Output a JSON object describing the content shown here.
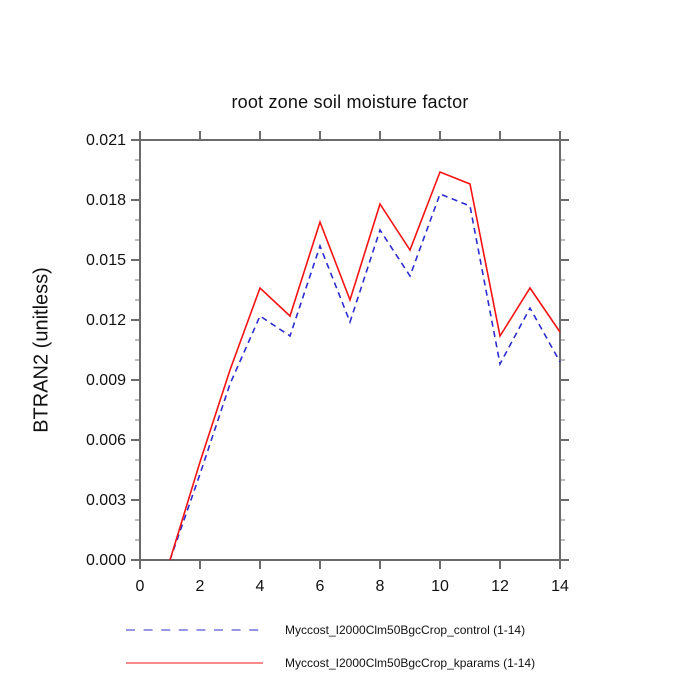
{
  "chart_data": {
    "type": "line",
    "title": "root zone soil moisture factor",
    "xlabel": "",
    "ylabel": "BTRAN2 (unitless)",
    "x": [
      1,
      2,
      3,
      4,
      5,
      6,
      7,
      8,
      9,
      10,
      11,
      12,
      13,
      14
    ],
    "series": [
      {
        "name": "Myccost_I2000Clm50BgcCrop_control (1-14)",
        "color": "#2c2cd0",
        "line_style": "dashed",
        "values": [
          0.0,
          0.0043,
          0.0088,
          0.0122,
          0.0112,
          0.0157,
          0.0119,
          0.0165,
          0.0142,
          0.0183,
          0.0177,
          0.0098,
          0.0126,
          0.0099
        ]
      },
      {
        "name": "Myccost_I2000Clm50BgcCrop_kparams (1-14)",
        "color": "#f51212",
        "line_style": "solid",
        "values": [
          0.0,
          0.0049,
          0.0095,
          0.0136,
          0.0122,
          0.0169,
          0.013,
          0.0178,
          0.0155,
          0.0194,
          0.0188,
          0.0112,
          0.0136,
          0.0114
        ]
      }
    ],
    "xlim": [
      0,
      14
    ],
    "ylim": [
      0,
      0.021
    ],
    "x_ticks": {
      "values": [
        0,
        2,
        4,
        6,
        8,
        10,
        12,
        14
      ],
      "labels": [
        "0",
        "2",
        "4",
        "6",
        "8",
        "10",
        "12",
        "14"
      ]
    },
    "y_ticks": {
      "values": [
        0.0,
        0.003,
        0.006,
        0.009,
        0.012,
        0.015,
        0.018,
        0.021
      ],
      "labels": [
        "0.000",
        "0.003",
        "0.006",
        "0.009",
        "0.012",
        "0.015",
        "0.018",
        "0.021"
      ]
    },
    "y_minor_ticks": [
      0.001,
      0.002,
      0.004,
      0.005,
      0.007,
      0.008,
      0.01,
      0.011,
      0.013,
      0.014,
      0.016,
      0.017,
      0.019,
      0.02
    ],
    "grid": false,
    "legend_position": "bottom",
    "frame_color": "#6b6b6b",
    "minor_tick_color": "#9a9a9a",
    "text_color": "#111111"
  }
}
